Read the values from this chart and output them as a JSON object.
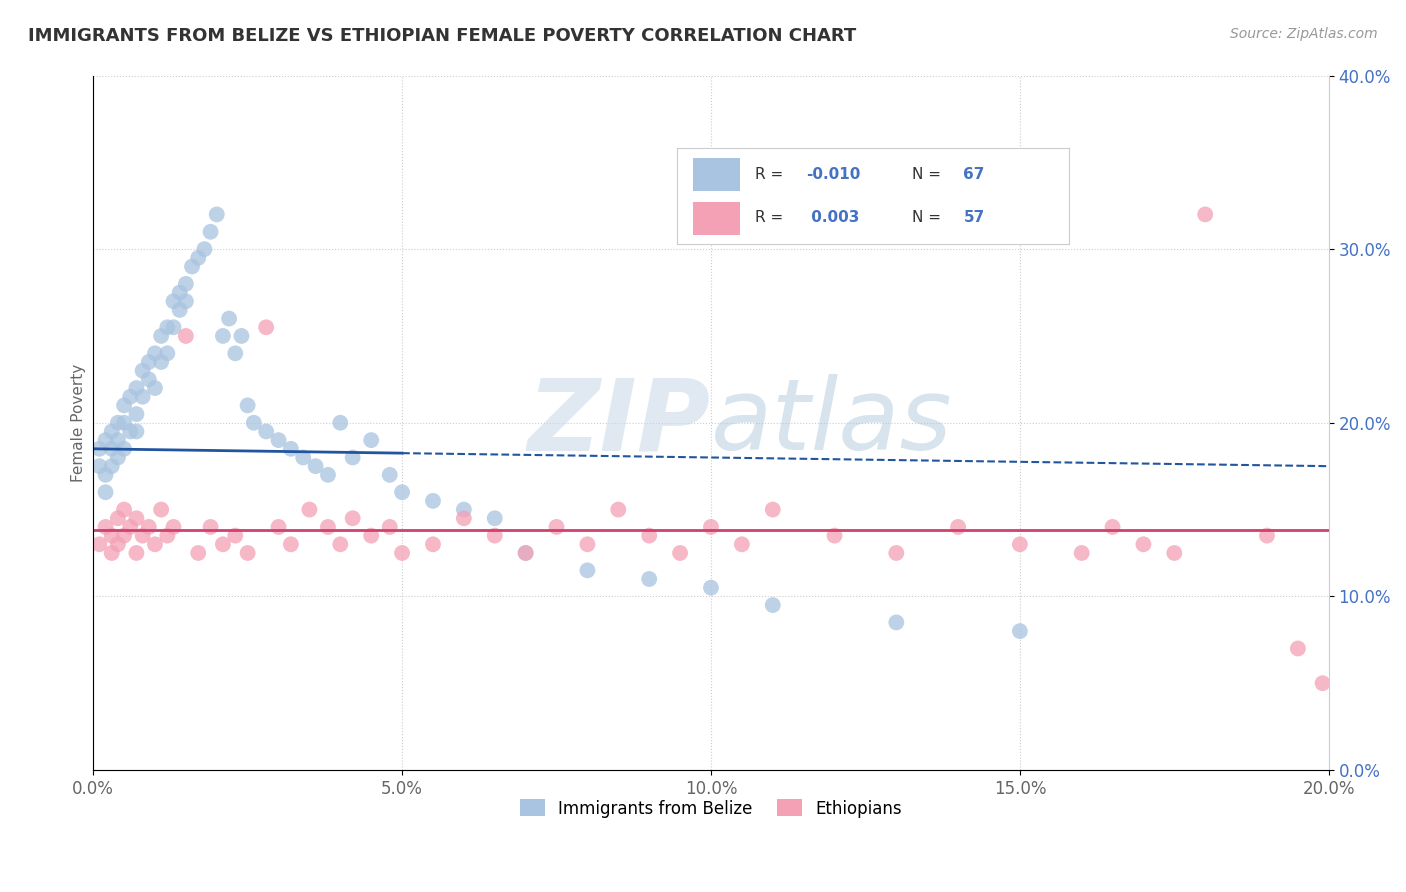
{
  "title": "IMMIGRANTS FROM BELIZE VS ETHIOPIAN FEMALE POVERTY CORRELATION CHART",
  "source_text": "Source: ZipAtlas.com",
  "ylabel": "Female Poverty",
  "xlim": [
    0.0,
    0.2
  ],
  "ylim": [
    0.0,
    0.4
  ],
  "xtick_vals": [
    0.0,
    0.05,
    0.1,
    0.15,
    0.2
  ],
  "xtick_labels": [
    "0.0%",
    "5.0%",
    "10.0%",
    "15.0%",
    "20.0%"
  ],
  "ytick_vals": [
    0.0,
    0.1,
    0.2,
    0.3,
    0.4
  ],
  "ytick_labels": [
    "0.0%",
    "10.0%",
    "20.0%",
    "30.0%",
    "40.0%"
  ],
  "blue_R": -0.01,
  "blue_N": 67,
  "pink_R": 0.003,
  "pink_N": 57,
  "blue_color": "#a8c4e0",
  "pink_color": "#f4a0b5",
  "blue_line_color": "#2255a0",
  "pink_line_color": "#d04070",
  "legend_label_blue": "Immigrants from Belize",
  "legend_label_pink": "Ethiopians",
  "watermark_zip": "ZIP",
  "watermark_atlas": "atlas",
  "background_color": "#ffffff",
  "blue_scatter_x": [
    0.001,
    0.001,
    0.002,
    0.002,
    0.002,
    0.003,
    0.003,
    0.003,
    0.004,
    0.004,
    0.004,
    0.005,
    0.005,
    0.005,
    0.006,
    0.006,
    0.007,
    0.007,
    0.007,
    0.008,
    0.008,
    0.009,
    0.009,
    0.01,
    0.01,
    0.011,
    0.011,
    0.012,
    0.012,
    0.013,
    0.013,
    0.014,
    0.014,
    0.015,
    0.015,
    0.016,
    0.017,
    0.018,
    0.019,
    0.02,
    0.021,
    0.022,
    0.023,
    0.024,
    0.025,
    0.026,
    0.028,
    0.03,
    0.032,
    0.034,
    0.036,
    0.038,
    0.04,
    0.042,
    0.045,
    0.048,
    0.05,
    0.055,
    0.06,
    0.065,
    0.07,
    0.08,
    0.09,
    0.1,
    0.11,
    0.13,
    0.15
  ],
  "blue_scatter_y": [
    0.185,
    0.175,
    0.19,
    0.17,
    0.16,
    0.195,
    0.185,
    0.175,
    0.2,
    0.19,
    0.18,
    0.21,
    0.2,
    0.185,
    0.215,
    0.195,
    0.22,
    0.205,
    0.195,
    0.23,
    0.215,
    0.235,
    0.225,
    0.24,
    0.22,
    0.25,
    0.235,
    0.255,
    0.24,
    0.27,
    0.255,
    0.275,
    0.265,
    0.28,
    0.27,
    0.29,
    0.295,
    0.3,
    0.31,
    0.32,
    0.25,
    0.26,
    0.24,
    0.25,
    0.21,
    0.2,
    0.195,
    0.19,
    0.185,
    0.18,
    0.175,
    0.17,
    0.2,
    0.18,
    0.19,
    0.17,
    0.16,
    0.155,
    0.15,
    0.145,
    0.125,
    0.115,
    0.11,
    0.105,
    0.095,
    0.085,
    0.08
  ],
  "pink_scatter_x": [
    0.001,
    0.002,
    0.003,
    0.003,
    0.004,
    0.004,
    0.005,
    0.005,
    0.006,
    0.007,
    0.007,
    0.008,
    0.009,
    0.01,
    0.011,
    0.012,
    0.013,
    0.015,
    0.017,
    0.019,
    0.021,
    0.023,
    0.025,
    0.028,
    0.03,
    0.032,
    0.035,
    0.038,
    0.04,
    0.042,
    0.045,
    0.048,
    0.05,
    0.055,
    0.06,
    0.065,
    0.07,
    0.075,
    0.08,
    0.085,
    0.09,
    0.095,
    0.1,
    0.105,
    0.11,
    0.12,
    0.13,
    0.14,
    0.15,
    0.16,
    0.165,
    0.17,
    0.175,
    0.18,
    0.19,
    0.195,
    0.199
  ],
  "pink_scatter_y": [
    0.13,
    0.14,
    0.125,
    0.135,
    0.13,
    0.145,
    0.135,
    0.15,
    0.14,
    0.125,
    0.145,
    0.135,
    0.14,
    0.13,
    0.15,
    0.135,
    0.14,
    0.25,
    0.125,
    0.14,
    0.13,
    0.135,
    0.125,
    0.255,
    0.14,
    0.13,
    0.15,
    0.14,
    0.13,
    0.145,
    0.135,
    0.14,
    0.125,
    0.13,
    0.145,
    0.135,
    0.125,
    0.14,
    0.13,
    0.15,
    0.135,
    0.125,
    0.14,
    0.13,
    0.15,
    0.135,
    0.125,
    0.14,
    0.13,
    0.125,
    0.14,
    0.13,
    0.125,
    0.32,
    0.135,
    0.07,
    0.05
  ],
  "blue_line_solid_end": 0.05,
  "blue_line_start_y": 0.185,
  "blue_line_end_y": 0.175,
  "pink_line_y": 0.138
}
